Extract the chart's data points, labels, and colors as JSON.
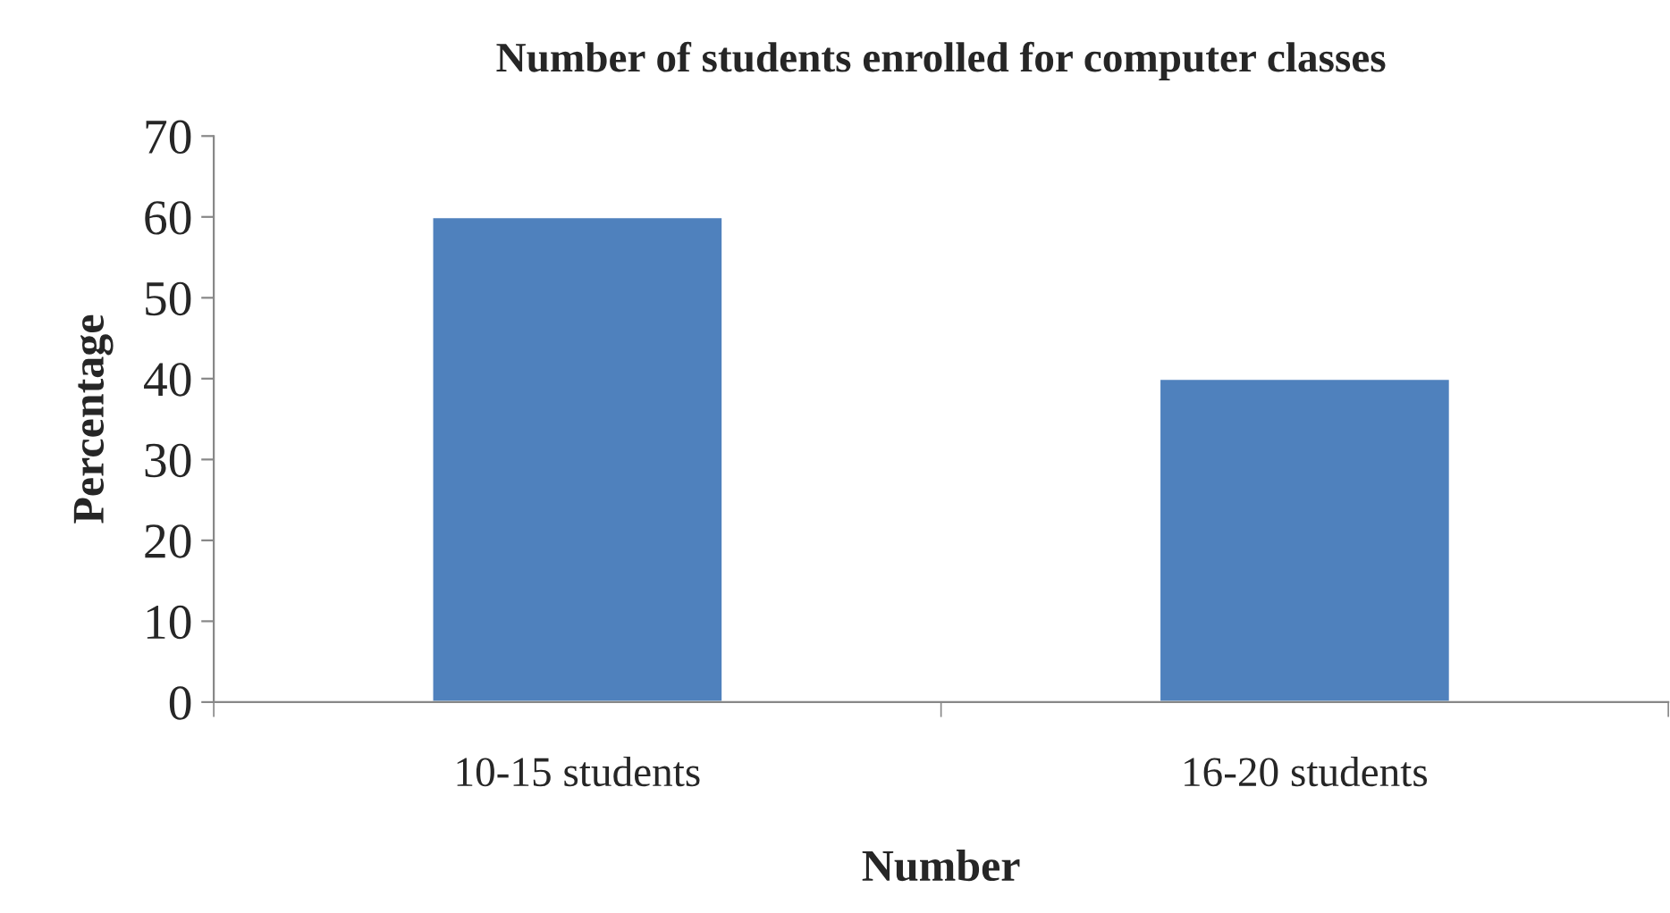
{
  "chart_data": {
    "type": "bar",
    "title": "Number of students enrolled for computer classes",
    "xlabel": "Number",
    "ylabel": "Percentage",
    "categories": [
      "10-15 students",
      "16-20 students"
    ],
    "values": [
      60,
      40
    ],
    "color": "#4f81bd",
    "ylim": [
      0,
      70
    ],
    "yticks": [
      0,
      10,
      20,
      30,
      40,
      50,
      60,
      70
    ],
    "grid": false,
    "legend": false
  }
}
